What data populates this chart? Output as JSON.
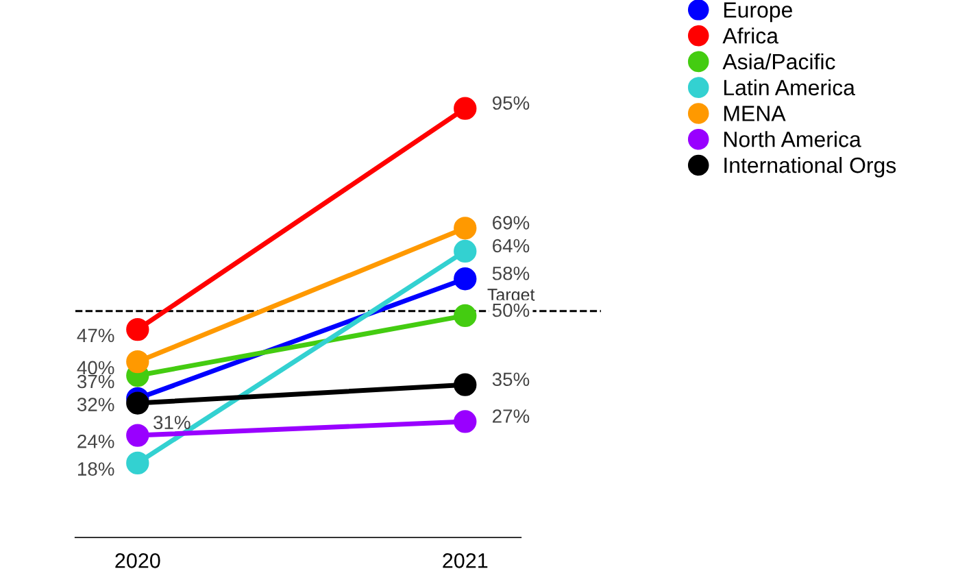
{
  "chart_data": {
    "type": "line",
    "categories": [
      "2020",
      "2021"
    ],
    "tick_labels": "x",
    "marker": "circle",
    "line_style": "solid",
    "legend": "top right",
    "grid": false,
    "series": [
      {
        "name": "Europe",
        "color": "#0000ff",
        "values": [
          32,
          58
        ],
        "value_labels": [
          "32%",
          "58%"
        ]
      },
      {
        "name": "Africa",
        "color": "#ff0000",
        "values": [
          47,
          95
        ],
        "value_labels": [
          "47%",
          "95%"
        ]
      },
      {
        "name": "Asia/Pacific",
        "color": "#44cc11",
        "values": [
          37,
          50
        ],
        "value_labels": [
          "37%",
          "50%"
        ]
      },
      {
        "name": "Latin America",
        "color": "#33d1d1",
        "values": [
          18,
          64
        ],
        "value_labels": [
          "18%",
          "64%"
        ]
      },
      {
        "name": "MENA",
        "color": "#ff9900",
        "values": [
          40,
          69
        ],
        "value_labels": [
          "40%",
          "69%"
        ]
      },
      {
        "name": "North America",
        "color": "#9900ff",
        "values": [
          24,
          27
        ],
        "value_labels": [
          "24%",
          "27%"
        ]
      },
      {
        "name": "International Orgs",
        "color": "#000000",
        "values": [
          31,
          35
        ],
        "value_labels": [
          "31%",
          "35%"
        ]
      }
    ],
    "ref_lines": [
      {
        "axis": "y",
        "value": 51,
        "label": "Target",
        "color": "#000000",
        "line_style": "dashed"
      }
    ]
  }
}
